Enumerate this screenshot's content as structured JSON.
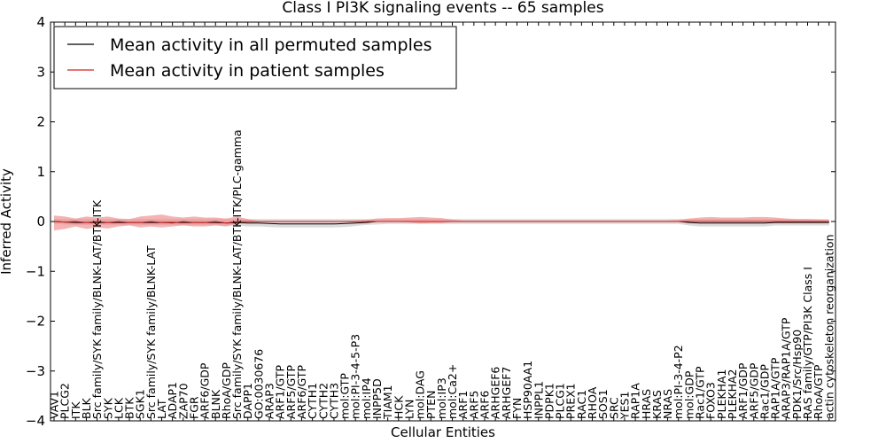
{
  "chart_data": {
    "type": "line",
    "title": "Class I PI3K signaling events -- 65 samples",
    "xlabel": "Cellular Entities",
    "ylabel": "Inferred Activity",
    "ylim": [
      -4,
      4
    ],
    "yticks": [
      "4",
      "3",
      "2",
      "1",
      "0",
      "−1",
      "−2",
      "−3",
      "−4"
    ],
    "ytick_values": [
      4,
      3,
      2,
      1,
      0,
      -1,
      -2,
      -3,
      -4
    ],
    "legend_position": "top-left",
    "categories": [
      "VAV1",
      "PLCG2",
      "ITK",
      "BLK",
      "Src family/SYK family/BLNK-LAT/BTK-ITK",
      "SYK",
      "LCK",
      "BTK",
      "SGK1",
      "Src family/SYK family/BLNK-LAT",
      "LAT",
      "ADAP1",
      "ZAP70",
      "FGR",
      "ARF6/GDP",
      "BLNK",
      "RhoA/GDP",
      "Src family/SYK family/BLNK-LAT/BTK-ITK/PLC-gamma",
      "DAPP1",
      "GO:0030676",
      "ARAP3",
      "ARF1/GTP",
      "ARF5/GTP",
      "ARF6/GTP",
      "CYTH1",
      "CYTH2",
      "CYTH3",
      "mol:GTP",
      "mol:PI-3-4-5-P3",
      "mol:IP4",
      "INPP5D",
      "TIAM1",
      "HCK",
      "LYN",
      "mol:DAG",
      "PTEN",
      "mol:IP3",
      "mol:Ca2+",
      "ARF1",
      "ARF5",
      "ARF6",
      "ARHGEF6",
      "ARHGEF7",
      "FYN",
      "HSP90AA1",
      "INPPL1",
      "PDPK1",
      "PLCG1",
      "PREX1",
      "RAC1",
      "RHOA",
      "SOS1",
      "SRC",
      "YES1",
      "RAP1A",
      "HRAS",
      "KRAS",
      "NRAS",
      "mol:PI-3-4-P2",
      "mol:GDP",
      "Rac1/GTP",
      "FOXO3",
      "PLEKHA1",
      "PLEKHA2",
      "ARF1/GDP",
      "ARF5/GDP",
      "Rac1/GDP",
      "RAP1A/GTP",
      "ARAP3/RAP1A/GTP",
      "PDK1/Src/Hsp90",
      "RAS family/GTP/PI3K Class I",
      "RhoA/GTP",
      "actin cytoskeleton reorganization"
    ],
    "series": [
      {
        "name": "Mean activity in all permuted samples",
        "color": "#000000",
        "values": [
          0,
          -0.01,
          -0.02,
          -0.02,
          -0.02,
          -0.02,
          -0.02,
          -0.02,
          -0.02,
          -0.02,
          -0.02,
          -0.02,
          -0.02,
          -0.02,
          -0.02,
          -0.02,
          -0.03,
          -0.02,
          -0.03,
          -0.03,
          -0.04,
          -0.05,
          -0.05,
          -0.05,
          -0.05,
          -0.05,
          -0.05,
          -0.04,
          -0.03,
          -0.02,
          0,
          0,
          0,
          0,
          0,
          0,
          0,
          0,
          0,
          0,
          0,
          0,
          0,
          0,
          0,
          0,
          0,
          0,
          0,
          0,
          0,
          0,
          0,
          0,
          0,
          0,
          0,
          0,
          0,
          -0.02,
          -0.03,
          -0.03,
          -0.03,
          -0.03,
          -0.03,
          -0.03,
          -0.03,
          -0.02,
          -0.02,
          -0.02,
          -0.02,
          -0.02,
          -0.02
        ],
        "lower": [
          -0.05,
          -0.06,
          -0.07,
          -0.07,
          -0.07,
          -0.07,
          -0.07,
          -0.07,
          -0.07,
          -0.07,
          -0.07,
          -0.07,
          -0.07,
          -0.07,
          -0.07,
          -0.07,
          -0.08,
          -0.08,
          -0.1,
          -0.1,
          -0.11,
          -0.12,
          -0.12,
          -0.12,
          -0.12,
          -0.12,
          -0.12,
          -0.11,
          -0.09,
          -0.07,
          -0.06,
          -0.05,
          -0.05,
          -0.05,
          -0.05,
          -0.05,
          -0.05,
          -0.05,
          -0.05,
          -0.05,
          -0.05,
          -0.05,
          -0.05,
          -0.05,
          -0.05,
          -0.05,
          -0.05,
          -0.05,
          -0.05,
          -0.05,
          -0.05,
          -0.05,
          -0.05,
          -0.05,
          -0.05,
          -0.05,
          -0.05,
          -0.05,
          -0.05,
          -0.08,
          -0.1,
          -0.1,
          -0.1,
          -0.1,
          -0.1,
          -0.1,
          -0.1,
          -0.08,
          -0.08,
          -0.08,
          -0.08,
          -0.08,
          -0.08
        ],
        "upper": [
          0.05,
          0.05,
          0.05,
          0.05,
          0.05,
          0.05,
          0.05,
          0.05,
          0.05,
          0.05,
          0.05,
          0.05,
          0.05,
          0.05,
          0.05,
          0.05,
          0.05,
          0.05,
          0.05,
          0.05,
          0.05,
          0.05,
          0.05,
          0.05,
          0.05,
          0.05,
          0.05,
          0.05,
          0.05,
          0.05,
          0.05,
          0.05,
          0.05,
          0.05,
          0.05,
          0.05,
          0.05,
          0.05,
          0.05,
          0.05,
          0.05,
          0.05,
          0.05,
          0.05,
          0.05,
          0.05,
          0.05,
          0.05,
          0.05,
          0.05,
          0.05,
          0.05,
          0.05,
          0.05,
          0.05,
          0.05,
          0.05,
          0.05,
          0.05,
          0.05,
          0.05,
          0.05,
          0.05,
          0.05,
          0.05,
          0.05,
          0.05,
          0.05,
          0.05,
          0.05,
          0.05,
          0.05,
          0.05
        ]
      },
      {
        "name": "Mean activity in patient samples",
        "color": "#d62020",
        "values": [
          0,
          -0.01,
          0,
          -0.02,
          0,
          -0.02,
          0,
          -0.02,
          -0.02,
          0,
          -0.02,
          -0.03,
          0,
          -0.02,
          -0.02,
          0,
          -0.03,
          0,
          0,
          0,
          0,
          0,
          0,
          0,
          0,
          0,
          0,
          0,
          0,
          0,
          0,
          0,
          0,
          0,
          0,
          0,
          0,
          0,
          0,
          0,
          0,
          0,
          0,
          0,
          0,
          0,
          0,
          0,
          0,
          0,
          0,
          0,
          0,
          0,
          0,
          0,
          0,
          0,
          0,
          0,
          0,
          0,
          0,
          0,
          0,
          0,
          0,
          0,
          0,
          0,
          0,
          0,
          0
        ],
        "lower": [
          -0.18,
          -0.15,
          -0.1,
          -0.15,
          -0.12,
          -0.14,
          -0.1,
          -0.08,
          -0.12,
          -0.1,
          -0.12,
          -0.1,
          -0.08,
          -0.1,
          -0.1,
          -0.08,
          -0.1,
          -0.05,
          -0.02,
          -0.01,
          -0.01,
          -0.01,
          -0.01,
          -0.01,
          -0.01,
          -0.01,
          -0.01,
          -0.01,
          -0.02,
          -0.02,
          -0.01,
          -0.01,
          -0.01,
          -0.02,
          -0.04,
          -0.03,
          -0.03,
          -0.01,
          -0.01,
          -0.01,
          -0.01,
          -0.01,
          -0.01,
          -0.01,
          -0.01,
          -0.01,
          -0.01,
          -0.01,
          -0.01,
          -0.01,
          -0.01,
          -0.01,
          -0.01,
          -0.01,
          -0.01,
          -0.01,
          -0.01,
          -0.01,
          -0.01,
          -0.01,
          -0.01,
          -0.01,
          -0.01,
          -0.01,
          -0.01,
          -0.01,
          -0.01,
          -0.01,
          -0.01,
          -0.01,
          -0.01,
          -0.01,
          -0.01
        ],
        "upper": [
          0.12,
          0.1,
          0.06,
          0.1,
          0.08,
          0.1,
          0.06,
          0.05,
          0.1,
          0.12,
          0.14,
          0.1,
          0.08,
          0.1,
          0.08,
          0.08,
          0.06,
          0.1,
          0.05,
          0.01,
          0.01,
          0.01,
          0.01,
          0.01,
          0.01,
          0.01,
          0.01,
          0.01,
          0.02,
          0.03,
          0.06,
          0.07,
          0.07,
          0.08,
          0.09,
          0.08,
          0.07,
          0.04,
          0.02,
          0.02,
          0.02,
          0.02,
          0.02,
          0.02,
          0.02,
          0.02,
          0.02,
          0.02,
          0.02,
          0.02,
          0.02,
          0.02,
          0.02,
          0.02,
          0.02,
          0.02,
          0.02,
          0.02,
          0.03,
          0.06,
          0.08,
          0.09,
          0.08,
          0.08,
          0.08,
          0.09,
          0.09,
          0.08,
          0.06,
          0.05,
          0.05,
          0.04,
          0.03
        ]
      }
    ],
    "band_colors": {
      "permuted": "#cccccc",
      "patient": "#f08080"
    }
  }
}
